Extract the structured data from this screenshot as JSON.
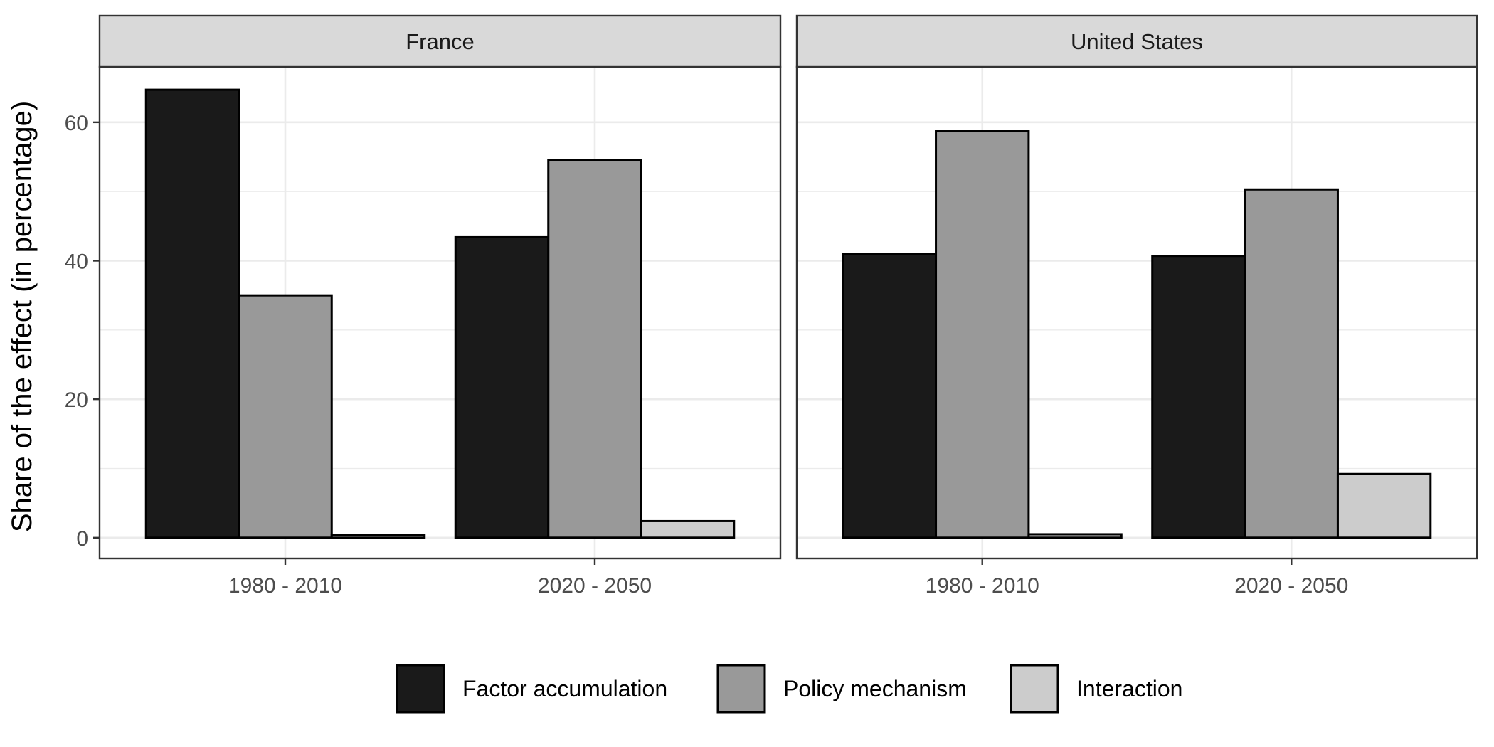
{
  "chart_data": {
    "type": "bar",
    "ylabel": "Share of the effect (in percentage)",
    "xlabel": "",
    "ylim": [
      -3,
      68
    ],
    "yticks": [
      0,
      20,
      40,
      60
    ],
    "categories": [
      "1980 - 2010",
      "2020 - 2050"
    ],
    "grid": true,
    "legend_position": "bottom",
    "series_meta": [
      {
        "name": "Factor accumulation",
        "color": "#1a1a1a"
      },
      {
        "name": "Policy mechanism",
        "color": "#999999"
      },
      {
        "name": "Interaction",
        "color": "#cccccc"
      }
    ],
    "panels": [
      {
        "title": "France",
        "series": [
          {
            "name": "Factor accumulation",
            "values": [
              64.7,
              43.4
            ]
          },
          {
            "name": "Policy mechanism",
            "values": [
              35.0,
              54.5
            ]
          },
          {
            "name": "Interaction",
            "values": [
              0.4,
              2.4
            ]
          }
        ]
      },
      {
        "title": "United States",
        "series": [
          {
            "name": "Factor accumulation",
            "values": [
              41.0,
              40.7
            ]
          },
          {
            "name": "Policy mechanism",
            "values": [
              58.7,
              50.3
            ]
          },
          {
            "name": "Interaction",
            "values": [
              0.5,
              9.2
            ]
          }
        ]
      }
    ]
  }
}
